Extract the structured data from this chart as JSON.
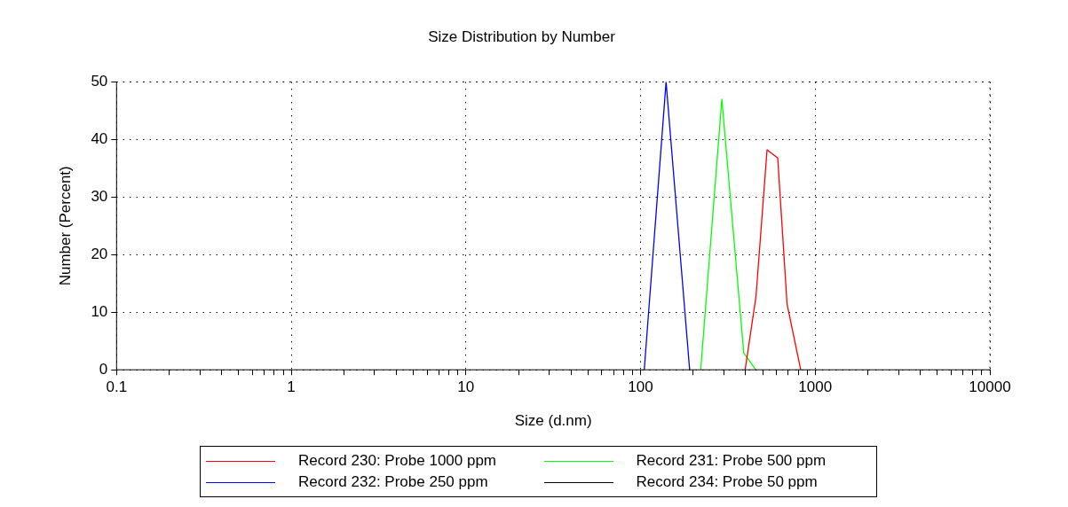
{
  "chart_data": {
    "type": "line",
    "title": "Size Distribution by Number",
    "xlabel": "Size (d.nm)",
    "ylabel": "Number (Percent)",
    "log": "x",
    "xlim": [
      0.1,
      10000
    ],
    "xticks": [
      0.1,
      {
        "value": 0.2,
        "label": null
      },
      {
        "value": 0.3,
        "label": null
      },
      {
        "value": 0.4,
        "label": null
      },
      {
        "value": 0.5,
        "label": null
      },
      {
        "value": 0.6,
        "label": null
      },
      {
        "value": 0.7,
        "label": null
      },
      {
        "value": 0.8,
        "label": null
      },
      {
        "value": 0.9,
        "label": null
      },
      1,
      {
        "value": 2,
        "label": null
      },
      {
        "value": 3,
        "label": null
      },
      {
        "value": 4,
        "label": null
      },
      {
        "value": 5,
        "label": null
      },
      {
        "value": 6,
        "label": null
      },
      {
        "value": 7,
        "label": null
      },
      {
        "value": 8,
        "label": null
      },
      {
        "value": 9,
        "label": null
      },
      10,
      {
        "value": 20,
        "label": null
      },
      {
        "value": 30,
        "label": null
      },
      {
        "value": 40,
        "label": null
      },
      {
        "value": 50,
        "label": null
      },
      {
        "value": 60,
        "label": null
      },
      {
        "value": 70,
        "label": null
      },
      {
        "value": 80,
        "label": null
      },
      {
        "value": 90,
        "label": null
      },
      100,
      {
        "value": 200,
        "label": null
      },
      {
        "value": 300,
        "label": null
      },
      {
        "value": 400,
        "label": null
      },
      {
        "value": 500,
        "label": null
      },
      {
        "value": 600,
        "label": null
      },
      {
        "value": 700,
        "label": null
      },
      {
        "value": 800,
        "label": null
      },
      {
        "value": 900,
        "label": null
      },
      1000,
      {
        "value": 2000,
        "label": null
      },
      {
        "value": 3000,
        "label": null
      },
      {
        "value": 4000,
        "label": null
      },
      {
        "value": 5000,
        "label": null
      },
      {
        "value": 6000,
        "label": null
      },
      {
        "value": 7000,
        "label": null
      },
      {
        "value": 8000,
        "label": null
      },
      {
        "value": 9000,
        "label": null
      },
      10000
    ],
    "ylim": [
      0,
      50
    ],
    "yticks": [
      0,
      10,
      20,
      30,
      40,
      50
    ],
    "grid": true,
    "legend": "bottom",
    "marker": "none",
    "line_style": "solid",
    "series": [
      {
        "name": "Record 230: Probe 1000 ppm",
        "color": "#ff0000",
        "x": [
          397,
          458,
          530,
          610,
          690,
          826
        ],
        "values": [
          0,
          12.7,
          38.2,
          36.8,
          11.4,
          0
        ]
      },
      {
        "name": "Record 231: Probe 500 ppm",
        "color": "#00ff00",
        "x": [
          221,
          292,
          390,
          457
        ],
        "values": [
          0,
          47,
          2.9,
          0
        ]
      },
      {
        "name": "Record 232: Probe 250 ppm",
        "color": "#0000ff",
        "x": [
          105,
          140,
          191
        ],
        "values": [
          0,
          50,
          0
        ]
      },
      {
        "name": "Record 234: Probe 50 ppm",
        "color": "#000000"
      }
    ]
  }
}
